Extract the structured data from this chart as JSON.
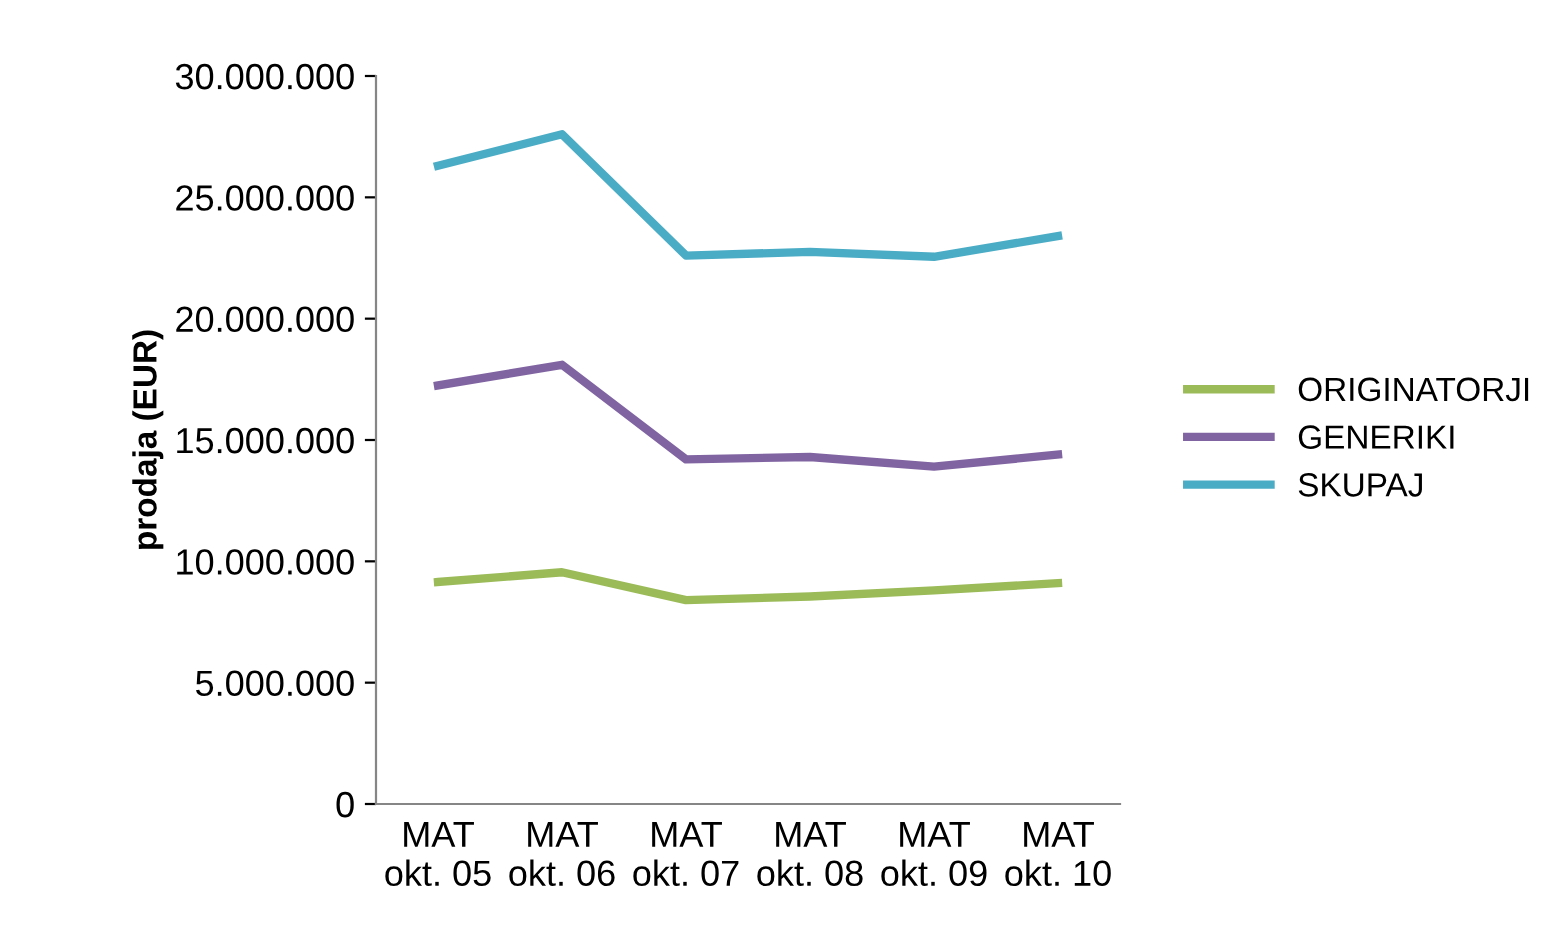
{
  "chart_data": {
    "type": "line",
    "ylabel": "prodaja (EUR)",
    "categories": [
      "MAT\nokt. 05",
      "MAT\nokt. 06",
      "MAT\nokt. 07",
      "MAT\nokt. 08",
      "MAT\nokt. 09",
      "MAT\nokt. 10"
    ],
    "series": [
      {
        "name": "ORIGINATORJI",
        "color": "#9bbb59",
        "values": [
          9150000,
          9550000,
          8400000,
          8550000,
          8800000,
          9100000
        ]
      },
      {
        "name": "GENERIKI",
        "color": "#8064a2",
        "values": [
          17250000,
          18100000,
          14200000,
          14300000,
          13900000,
          14400000
        ]
      },
      {
        "name": "SKUPAJ",
        "color": "#4bacc6",
        "values": [
          26300000,
          27600000,
          22600000,
          22750000,
          22550000,
          23400000
        ]
      }
    ],
    "ylim": [
      0,
      30000000
    ],
    "yticks": [
      {
        "value": 0,
        "label": "0"
      },
      {
        "value": 5000000,
        "label": "5.000.000"
      },
      {
        "value": 10000000,
        "label": "10.000.000"
      },
      {
        "value": 15000000,
        "label": "15.000.000"
      },
      {
        "value": 20000000,
        "label": "20.000.000"
      },
      {
        "value": 25000000,
        "label": "25.000.000"
      },
      {
        "value": 30000000,
        "label": "30.000.000"
      }
    ],
    "grid": false,
    "legend": "right",
    "marker": "none",
    "line_style": "solid"
  }
}
